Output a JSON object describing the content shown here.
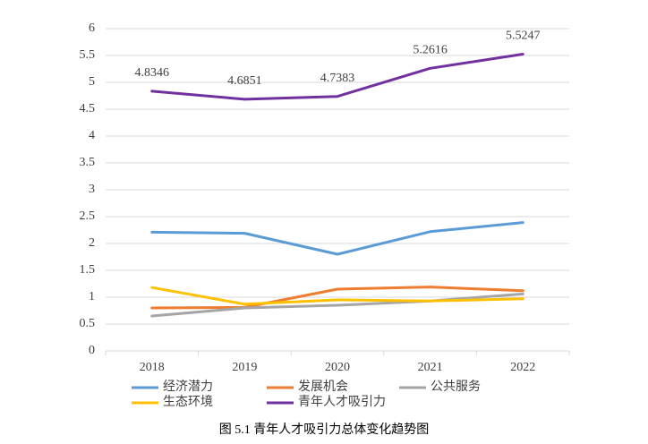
{
  "chart_data": {
    "type": "line",
    "title": "图 5.1  青年人才吸引力总体变化趋势图",
    "categories": [
      "2018",
      "2019",
      "2020",
      "2021",
      "2022"
    ],
    "series": [
      {
        "name": "经济潜力",
        "color": "#5b9bd5",
        "values": [
          2.21,
          2.19,
          1.8,
          2.22,
          2.39
        ]
      },
      {
        "name": "发展机会",
        "color": "#ed7d31",
        "values": [
          0.8,
          0.81,
          1.15,
          1.19,
          1.12
        ]
      },
      {
        "name": "公共服务",
        "color": "#a5a5a5",
        "values": [
          0.65,
          0.8,
          0.85,
          0.93,
          1.06
        ]
      },
      {
        "name": "生态环境",
        "color": "#ffc000",
        "values": [
          1.18,
          0.87,
          0.95,
          0.93,
          0.97
        ]
      },
      {
        "name": "青年人才吸引力",
        "color": "#7030a0",
        "values": [
          4.8346,
          4.6851,
          4.7383,
          5.2616,
          5.5247
        ],
        "data_labels": true
      }
    ],
    "ylim": [
      0,
      6
    ],
    "yticks": [
      0,
      0.5,
      1,
      1.5,
      2,
      2.5,
      3,
      3.5,
      4,
      4.5,
      5,
      5.5,
      6
    ],
    "grid": true,
    "legend": "bottom"
  }
}
